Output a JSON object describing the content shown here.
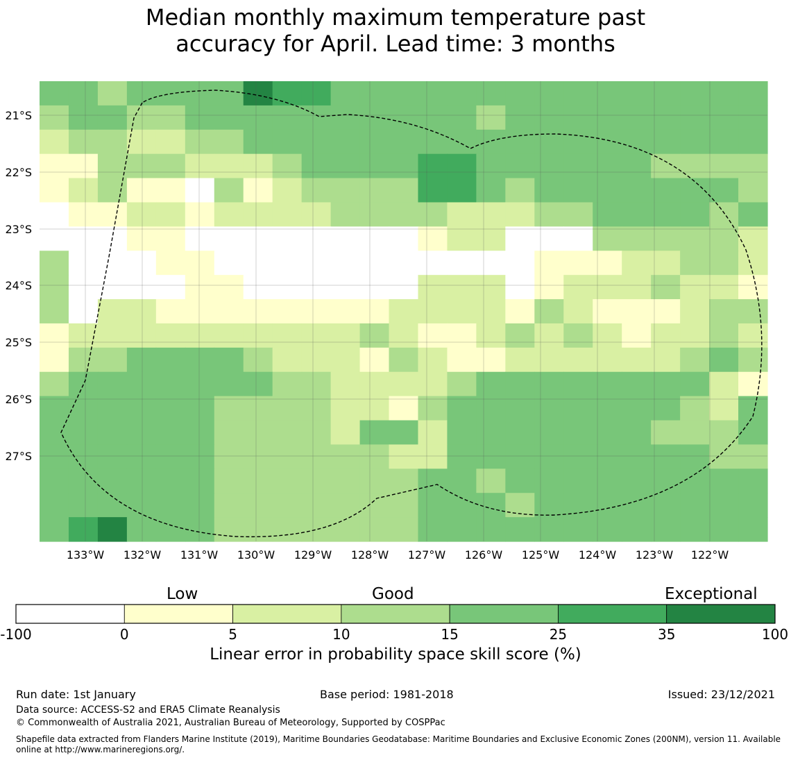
{
  "title_line1": "Median monthly maximum temperature past",
  "title_line2": "accuracy for April. Lead time: 3 months",
  "map": {
    "lat_labels": [
      "21°S",
      "22°S",
      "23°S",
      "24°S",
      "25°S",
      "26°S",
      "27°S"
    ],
    "lon_labels": [
      "133°W",
      "132°W",
      "131°W",
      "130°W",
      "129°W",
      "128°W",
      "127°W",
      "126°W",
      "125°W",
      "124°W",
      "123°W",
      "122°W"
    ],
    "grid_rows_north_to_south": [
      "4434444655444444444444444",
      "3443344444444443444444444",
      "2332233444444444444444444",
      "1133322234444554444443333",
      "1231103123333554344444443",
      "0112212222333322233444434",
      "0001100000000122000333332",
      "3000110000000000011122332",
      "3000011000000222012223221",
      "3022111111112222132111233",
      "1222222222232112323212232",
      "1334444322213211222222343",
      "3444444433222234444444421",
      "4444443333221344444444324",
      "4444443333244244444443334",
      "4444443333332244444444433",
      "4444443333333443444444444",
      "4444443333333444344444444",
      "4564443333333444444444444"
    ],
    "region_outline": "Exclusive Economic Zone boundary (dashed)"
  },
  "legend": {
    "categories": [
      "Low",
      "Good",
      "Exceptional"
    ],
    "ticks": [
      "-100",
      "0",
      "5",
      "10",
      "15",
      "25",
      "35",
      "100"
    ],
    "colors": [
      "#ffffff",
      "#ffffcc",
      "#d9f0a3",
      "#addd8e",
      "#78c679",
      "#41ab5d",
      "#238443"
    ],
    "label": "Linear error in probability space skill score (%)"
  },
  "footer": {
    "run_date": "Run date: 1st January",
    "base_period": "Base period: 1981-2018",
    "issued": "Issued: 23/12/2021",
    "data_source": "Data source: ACCESS-S2 and ERA5 Climate Reanalysis",
    "copyright": "© Commonwealth of Australia 2021, Australian Bureau of Meteorology, Supported by COSPPac",
    "shapefile_line1": "Shapefile data extracted from Flanders Marine Institute (2019), Maritime Boundaries Geodatabase: Maritime Boundaries and Exclusive Economic Zones (200NM), version 11. Available",
    "shapefile_line2": "online at http://www.marineregions.org/."
  }
}
